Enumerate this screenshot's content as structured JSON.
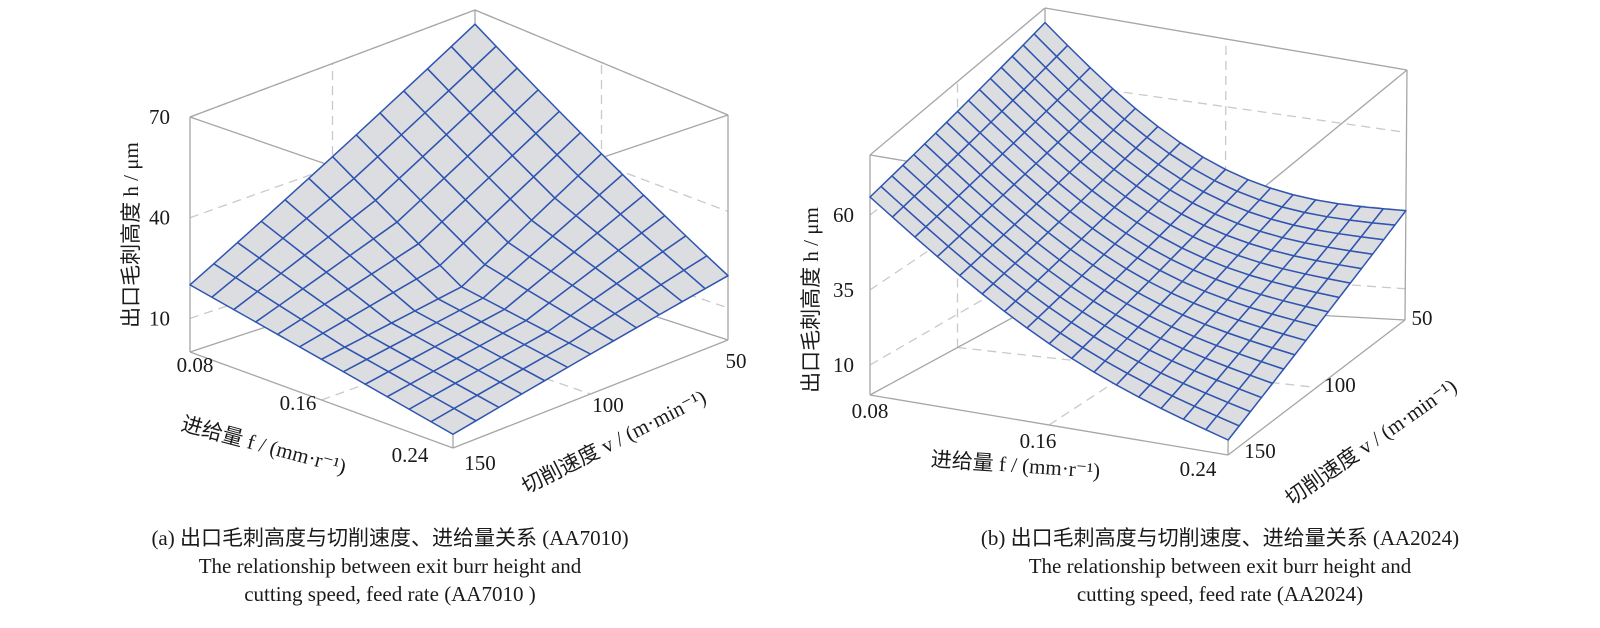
{
  "chart_data": [
    {
      "type": "surface",
      "panel_caption_cn": "(a) 出口毛刺高度与切削速度、进给量关系 (AA7010)",
      "caption_en_line1": "The relationship between exit burr height and",
      "caption_en_line2": "cutting speed, feed rate (AA7010 )",
      "zlabel": "出口毛刺高度 h / μm",
      "xlabel": "进给量 f / (mm·r⁻¹)",
      "ylabel": "切削速度 v / (m·min⁻¹)",
      "x_ticks": [
        "0.08",
        "0.16",
        "0.24"
      ],
      "y_ticks": [
        "150",
        "100",
        "50"
      ],
      "z_ticks": [
        "10",
        "40",
        "70"
      ],
      "xlim": [
        0.08,
        0.24
      ],
      "ylim": [
        50,
        150
      ],
      "zlim": [
        0,
        70
      ],
      "grid_size": 13,
      "surface_color": "#dcdde0",
      "mesh_color": "#2f55b0",
      "corners": {
        "f0.08_v150": 20,
        "f0.24_v150": 4,
        "f0.08_v50": 66,
        "f0.24_v50": 20
      }
    },
    {
      "type": "surface",
      "panel_caption_cn": "(b) 出口毛刺高度与切削速度、进给量关系 (AA2024)",
      "caption_en_line1": "The relationship between exit burr height and",
      "caption_en_line2": "cutting speed, feed rate (AA2024)",
      "zlabel": "出口毛刺高度 h / μm",
      "xlabel": "进给量 f / (mm·r⁻¹)",
      "ylabel": "切削速度 v / (m·min⁻¹)",
      "x_ticks": [
        "0.08",
        "0.16",
        "0.24"
      ],
      "y_ticks": [
        "150",
        "100",
        "50"
      ],
      "z_ticks": [
        "10",
        "35",
        "60"
      ],
      "xlim": [
        0.08,
        0.24
      ],
      "ylim": [
        50,
        150
      ],
      "zlim": [
        0,
        80
      ],
      "grid_size": 17,
      "surface_color": "#dcdde0",
      "mesh_color": "#2f55b0",
      "corners": {
        "f0.08_v150": 66,
        "f0.24_v150": 5,
        "f0.08_v50": 76,
        "f0.24_v50": 35
      }
    }
  ]
}
